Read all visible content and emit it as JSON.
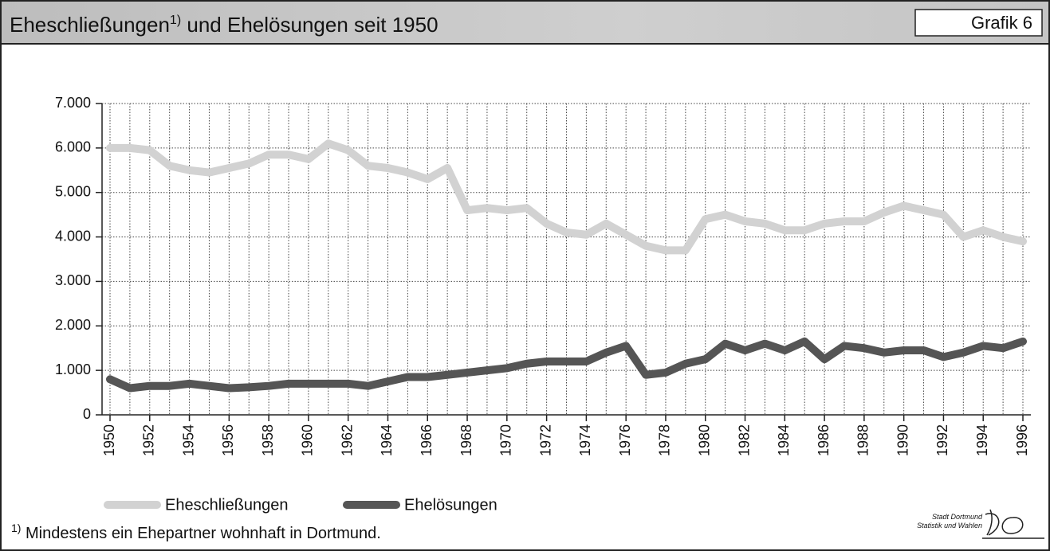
{
  "chart_data": {
    "type": "line",
    "title": "Eheschließungen",
    "title_footnote_mark": "1)",
    "title_suffix": " und Ehelösungen seit 1950",
    "badge": "Grafik 6",
    "x": [
      1950,
      1951,
      1952,
      1953,
      1954,
      1955,
      1956,
      1957,
      1958,
      1959,
      1960,
      1961,
      1962,
      1963,
      1964,
      1965,
      1966,
      1967,
      1968,
      1969,
      1970,
      1971,
      1972,
      1973,
      1974,
      1975,
      1976,
      1977,
      1978,
      1979,
      1980,
      1981,
      1982,
      1983,
      1984,
      1985,
      1986,
      1987,
      1988,
      1989,
      1990,
      1991,
      1992,
      1993,
      1994,
      1995,
      1996
    ],
    "xlim": [
      1950,
      1996
    ],
    "xticks": [
      1950,
      1952,
      1954,
      1956,
      1958,
      1960,
      1962,
      1964,
      1966,
      1968,
      1970,
      1972,
      1974,
      1976,
      1978,
      1980,
      1982,
      1984,
      1986,
      1988,
      1990,
      1992,
      1994,
      1996
    ],
    "ylim": [
      0,
      7000
    ],
    "yticks": [
      0,
      {
        "value": 1000,
        "label": "1.000"
      },
      {
        "value": 2000,
        "label": "2.000"
      },
      {
        "value": 3000,
        "label": "3.000"
      },
      {
        "value": 4000,
        "label": "4.000"
      },
      {
        "value": 5000,
        "label": "5.000"
      },
      {
        "value": 6000,
        "label": "6.000"
      },
      {
        "value": 7000,
        "label": "7.000"
      }
    ],
    "grid": true,
    "legend": "bottom-left",
    "series": [
      {
        "name": "Eheschließungen",
        "color": "#d2d2d2",
        "values": [
          6000,
          6000,
          5950,
          5600,
          5500,
          5450,
          5550,
          5650,
          5850,
          5850,
          5750,
          6100,
          5950,
          5600,
          5550,
          5450,
          5300,
          5550,
          4600,
          4650,
          4600,
          4650,
          4300,
          4100,
          4050,
          4300,
          4050,
          3800,
          3700,
          3700,
          4400,
          4500,
          4350,
          4300,
          4150,
          4150,
          4300,
          4350,
          4350,
          4550,
          4700,
          4600,
          4500,
          4000,
          4150,
          4000,
          3900
        ]
      },
      {
        "name": "Ehelösungen",
        "color": "#555555",
        "values": [
          800,
          600,
          650,
          650,
          700,
          650,
          600,
          620,
          650,
          700,
          700,
          700,
          700,
          650,
          750,
          850,
          850,
          900,
          950,
          1000,
          1050,
          1150,
          1200,
          1200,
          1200,
          1400,
          1550,
          900,
          950,
          1150,
          1250,
          1600,
          1450,
          1600,
          1450,
          1650,
          1250,
          1550,
          1500,
          1400,
          1450,
          1450,
          1300,
          1400,
          1550,
          1500,
          1650
        ]
      }
    ],
    "footnote_mark": "1)",
    "footnote": " Mindestens ein Ehepartner wohnhaft in Dortmund.",
    "source_line1": "Stadt Dortmund",
    "source_line2": "Statistik und Wahlen"
  }
}
